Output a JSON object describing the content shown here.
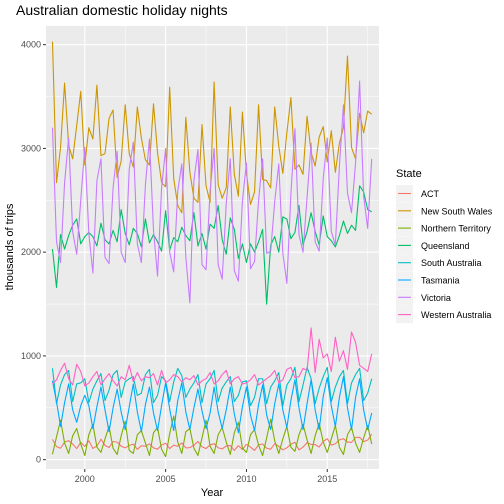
{
  "chart_data": {
    "type": "line",
    "title": "Australian domestic holiday nights",
    "xlabel": "Year",
    "ylabel": "thousands of trips",
    "xlim": [
      1997.6,
      2018.2
    ],
    "ylim": [
      -90,
      4180
    ],
    "x_ticks": [
      2000,
      2005,
      2010,
      2015
    ],
    "y_ticks": [
      0,
      1000,
      2000,
      3000,
      4000
    ],
    "grid": true,
    "legend_position": "right",
    "legend_title": "State",
    "x": [
      1998.0,
      1998.25,
      1998.5,
      1998.75,
      1999.0,
      1999.25,
      1999.5,
      1999.75,
      2000.0,
      2000.25,
      2000.5,
      2000.75,
      2001.0,
      2001.25,
      2001.5,
      2001.75,
      2002.0,
      2002.25,
      2002.5,
      2002.75,
      2003.0,
      2003.25,
      2003.5,
      2003.75,
      2004.0,
      2004.25,
      2004.5,
      2004.75,
      2005.0,
      2005.25,
      2005.5,
      2005.75,
      2006.0,
      2006.25,
      2006.5,
      2006.75,
      2007.0,
      2007.25,
      2007.5,
      2007.75,
      2008.0,
      2008.25,
      2008.5,
      2008.75,
      2009.0,
      2009.25,
      2009.5,
      2009.75,
      2010.0,
      2010.25,
      2010.5,
      2010.75,
      2011.0,
      2011.25,
      2011.5,
      2011.75,
      2012.0,
      2012.25,
      2012.5,
      2012.75,
      2013.0,
      2013.25,
      2013.5,
      2013.75,
      2014.0,
      2014.25,
      2014.5,
      2014.75,
      2015.0,
      2015.25,
      2015.5,
      2015.75,
      2016.0,
      2016.25,
      2016.5,
      2016.75,
      2017.0,
      2017.25,
      2017.5,
      2017.75
    ],
    "series": [
      {
        "name": "ACT",
        "color": "#F8766D",
        "values": [
          196,
          126,
          110,
          170,
          183,
          150,
          107,
          166,
          128,
          182,
          108,
          132,
          197,
          137,
          117,
          175,
          169,
          130,
          114,
          138,
          150,
          100,
          134,
          130,
          152,
          114,
          101,
          141,
          158,
          107,
          140,
          130,
          161,
          113,
          116,
          139,
          176,
          124,
          107,
          142,
          154,
          115,
          104,
          132,
          136,
          89,
          135,
          98,
          148,
          121,
          89,
          143,
          151,
          110,
          101,
          154,
          128,
          95,
          114,
          149,
          168,
          94,
          121,
          164,
          147,
          145,
          122,
          176,
          202,
          139,
          153,
          191,
          202,
          170,
          166,
          214,
          216,
          174,
          188,
          245
        ]
      },
      {
        "name": "New South Wales",
        "color": "#CD9600",
        "values": [
          4030,
          2670,
          3010,
          3630,
          3030,
          2900,
          3220,
          3550,
          2840,
          3200,
          3090,
          3610,
          2930,
          2950,
          3290,
          3370,
          2720,
          2880,
          3420,
          2950,
          2820,
          3400,
          3100,
          2890,
          2840,
          3430,
          2960,
          2670,
          2630,
          3590,
          2710,
          2450,
          2380,
          3300,
          2770,
          2520,
          2480,
          3230,
          2640,
          2480,
          3640,
          2650,
          2520,
          2620,
          3400,
          2750,
          2540,
          3350,
          2760,
          2460,
          2580,
          3420,
          2700,
          2690,
          2620,
          3400,
          3020,
          2760,
          3150,
          3490,
          2800,
          2840,
          2750,
          3310,
          2960,
          2830,
          3110,
          3210,
          2870,
          3170,
          2770,
          3050,
          3200,
          3890,
          3010,
          2900,
          3340,
          3150,
          3360,
          3330
        ]
      },
      {
        "name": "Northern Territory",
        "color": "#7CAE00",
        "values": [
          52,
          220,
          380,
          160,
          60,
          230,
          300,
          150,
          40,
          240,
          340,
          120,
          70,
          200,
          320,
          110,
          50,
          230,
          370,
          90,
          60,
          240,
          280,
          160,
          40,
          260,
          310,
          100,
          30,
          250,
          420,
          170,
          60,
          270,
          300,
          110,
          40,
          210,
          380,
          130,
          60,
          240,
          310,
          170,
          50,
          260,
          360,
          110,
          70,
          240,
          290,
          140,
          40,
          210,
          390,
          180,
          60,
          200,
          320,
          120,
          80,
          240,
          340,
          190,
          60,
          230,
          350,
          170,
          70,
          200,
          330,
          120,
          50,
          240,
          310,
          160,
          70,
          210,
          330,
          150
        ]
      },
      {
        "name": "Queensland",
        "color": "#00BE67",
        "values": [
          2030,
          1660,
          2170,
          2030,
          2160,
          2260,
          2320,
          2080,
          2150,
          2190,
          2150,
          2060,
          2280,
          2120,
          2080,
          2210,
          2100,
          2410,
          2180,
          2070,
          2230,
          2180,
          2050,
          2320,
          2090,
          2170,
          2100,
          2010,
          2400,
          2020,
          2140,
          2100,
          2240,
          2160,
          2110,
          2380,
          2060,
          2180,
          2030,
          2270,
          2230,
          2450,
          2120,
          1980,
          2330,
          2220,
          1940,
          2080,
          1900,
          2080,
          2000,
          2100,
          2220,
          1500,
          2070,
          2150,
          2000,
          2340,
          2320,
          2130,
          2190,
          2450,
          2070,
          2200,
          2380,
          2200,
          2070,
          2350,
          2150,
          2110,
          2050,
          2160,
          2300,
          2180,
          2260,
          2210,
          2640,
          2580,
          2410,
          2390
        ]
      },
      {
        "name": "South Australia",
        "color": "#00BFC4",
        "values": [
          880,
          540,
          720,
          820,
          860,
          560,
          730,
          740,
          780,
          550,
          680,
          760,
          830,
          570,
          670,
          820,
          860,
          600,
          750,
          780,
          800,
          620,
          640,
          820,
          870,
          550,
          620,
          800,
          760,
          560,
          750,
          880,
          810,
          600,
          680,
          740,
          820,
          550,
          730,
          780,
          860,
          560,
          690,
          750,
          800,
          560,
          620,
          750,
          760,
          520,
          600,
          780,
          780,
          540,
          700,
          760,
          840,
          520,
          720,
          780,
          890,
          560,
          720,
          890,
          780,
          540,
          690,
          800,
          890,
          560,
          700,
          800,
          860,
          540,
          740,
          820,
          880,
          570,
          640,
          780
        ]
      },
      {
        "name": "Tasmania",
        "color": "#00A9FF",
        "values": [
          760,
          560,
          320,
          550,
          730,
          480,
          360,
          520,
          620,
          520,
          300,
          510,
          700,
          480,
          270,
          500,
          680,
          460,
          290,
          510,
          730,
          460,
          270,
          530,
          700,
          450,
          280,
          520,
          740,
          490,
          280,
          570,
          740,
          460,
          290,
          500,
          680,
          470,
          300,
          450,
          700,
          460,
          300,
          480,
          700,
          440,
          260,
          510,
          700,
          430,
          280,
          530,
          720,
          430,
          290,
          540,
          730,
          480,
          310,
          570,
          770,
          500,
          290,
          540,
          770,
          480,
          290,
          610,
          790,
          520,
          320,
          600,
          800,
          500,
          290,
          600,
          780,
          480,
          290,
          450
        ]
      },
      {
        "name": "Victoria",
        "color": "#C77CFF",
        "values": [
          3200,
          2100,
          1900,
          2670,
          3100,
          2200,
          1980,
          2500,
          3010,
          2180,
          1800,
          2690,
          2900,
          1950,
          1890,
          2620,
          2970,
          2000,
          1900,
          2800,
          3060,
          2080,
          1900,
          2650,
          3090,
          2210,
          1770,
          2620,
          3000,
          2000,
          1810,
          2590,
          2850,
          1950,
          1510,
          2690,
          2990,
          1880,
          1830,
          2590,
          3000,
          1880,
          1740,
          2470,
          2900,
          1820,
          1720,
          2490,
          2860,
          1840,
          1910,
          2500,
          2900,
          1990,
          2010,
          2490,
          2850,
          1990,
          1700,
          2560,
          3190,
          2170,
          2000,
          2530,
          3050,
          2100,
          2010,
          2710,
          3100,
          2200,
          2070,
          2830,
          3420,
          2570,
          2380,
          2860,
          3650,
          2540,
          2230,
          2900
        ]
      },
      {
        "name": "Western Australia",
        "color": "#FF61C3",
        "values": [
          730,
          770,
          860,
          930,
          780,
          720,
          920,
          850,
          710,
          740,
          800,
          850,
          720,
          780,
          830,
          760,
          710,
          800,
          770,
          910,
          750,
          840,
          760,
          800,
          790,
          830,
          720,
          860,
          740,
          770,
          820,
          800,
          750,
          790,
          770,
          810,
          720,
          760,
          780,
          840,
          730,
          760,
          820,
          860,
          730,
          780,
          800,
          730,
          740,
          770,
          820,
          720,
          750,
          780,
          810,
          860,
          740,
          770,
          870,
          890,
          790,
          800,
          880,
          860,
          1270,
          840,
          1160,
          980,
          1020,
          850,
          1180,
          950,
          1050,
          870,
          1230,
          1130,
          910,
          880,
          850,
          1020
        ]
      }
    ]
  }
}
